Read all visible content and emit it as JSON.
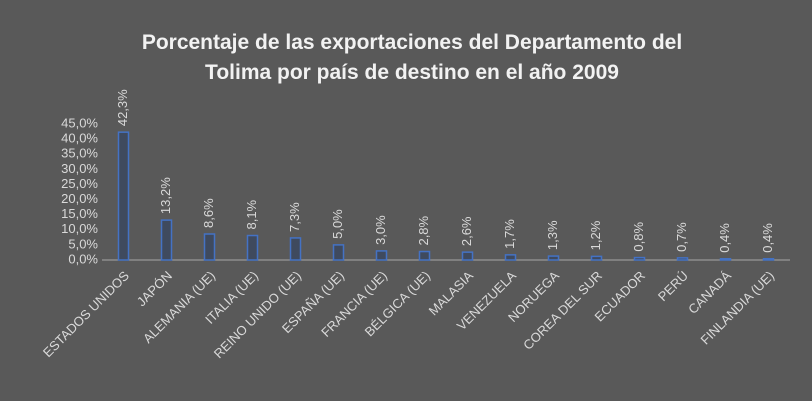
{
  "chart_data": {
    "type": "bar",
    "title": "Porcentaje de las exportaciones del Departamento del Tolima por país de destino en el año 2009",
    "categories": [
      "ESTADOS UNIDOS",
      "JAPÓN",
      "ALEMANIA (UE)",
      "ITALIA (UE)",
      "REINO UNIDO (UE)",
      "ESPAÑA (UE)",
      "FRANCIA (UE)",
      "BÉLGICA (UE)",
      "MALASIA",
      "VENEZUELA",
      "NORUEGA",
      "COREA DEL SUR",
      "ECUADOR",
      "PERÚ",
      "CANADÁ",
      "FINLANDIA (UE)"
    ],
    "values": [
      42.3,
      13.2,
      8.6,
      8.1,
      7.3,
      5.0,
      3.0,
      2.8,
      2.6,
      1.7,
      1.3,
      1.2,
      0.8,
      0.7,
      0.4,
      0.4
    ],
    "value_labels": [
      "42,3%",
      "13,2%",
      "8,6%",
      "8,1%",
      "7,3%",
      "5,0%",
      "3,0%",
      "2,8%",
      "2,6%",
      "1,7%",
      "1,3%",
      "1,2%",
      "0,8%",
      "0,7%",
      "0,4%",
      "0,4%"
    ],
    "color": "#4472c4",
    "ylim": [
      0,
      45
    ],
    "yticks": [
      {
        "value": 0,
        "label": "0,0%"
      },
      {
        "value": 5,
        "label": "5,0%"
      },
      {
        "value": 10,
        "label": "10,0%"
      },
      {
        "value": 15,
        "label": "15,0%"
      },
      {
        "value": 20,
        "label": "20,0%"
      },
      {
        "value": 25,
        "label": "25,0%"
      },
      {
        "value": 30,
        "label": "30,0%"
      },
      {
        "value": 35,
        "label": "35,0%"
      },
      {
        "value": 40,
        "label": "40,0%"
      },
      {
        "value": 45,
        "label": "45,0%"
      }
    ],
    "grid": false
  }
}
